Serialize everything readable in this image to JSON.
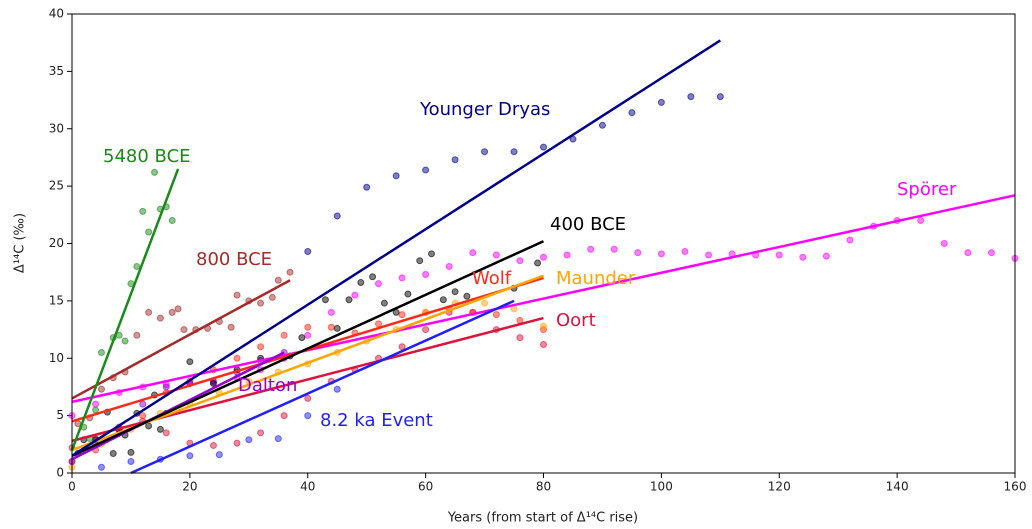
{
  "chart_data": {
    "type": "scatter",
    "x_label": "Years (from start of Δ¹⁴C rise)",
    "y_label": "Δ¹⁴C (‰)",
    "xlim": [
      0,
      160
    ],
    "xticks": [
      0,
      20,
      40,
      60,
      80,
      100,
      120,
      140,
      160
    ],
    "ylim": [
      0,
      40
    ],
    "yticks": [
      0,
      5,
      10,
      15,
      20,
      25,
      30,
      35,
      40
    ],
    "series": [
      {
        "name": "Spörer",
        "color": "#ff00ff",
        "x": [
          0,
          4,
          8,
          12,
          16,
          20,
          24,
          28,
          32,
          36,
          40,
          44,
          48,
          52,
          56,
          60,
          64,
          68,
          72,
          76,
          80,
          84,
          88,
          92,
          96,
          100,
          104,
          108,
          112,
          116,
          120,
          124,
          128,
          132,
          136,
          140,
          144,
          148,
          152,
          156,
          160
        ],
        "values": [
          5,
          6,
          7,
          7.5,
          7.7,
          7.8,
          7.9,
          8.3,
          9,
          10,
          12,
          14,
          15.5,
          16.5,
          17,
          17.3,
          18,
          19.2,
          19,
          18.5,
          18.8,
          19,
          19.5,
          19.5,
          19.2,
          19.1,
          19.3,
          19,
          19.1,
          19,
          19,
          18.8,
          18.9,
          20.3,
          21.5,
          22,
          22,
          20,
          19.2,
          19.2,
          18.7
        ],
        "fit": {
          "x": [
            0,
            160
          ],
          "values": [
            6.2,
            24.2
          ]
        }
      },
      {
        "name": "Oort",
        "color": "#dc143c",
        "x": [
          0,
          4,
          8,
          12,
          16,
          20,
          24,
          28,
          32,
          36,
          40,
          44,
          48,
          52,
          56,
          60,
          64,
          68,
          72,
          76,
          80
        ],
        "values": [
          2.2,
          3,
          3.8,
          4.5,
          3.5,
          2.6,
          2.4,
          2.6,
          3.5,
          5,
          6.5,
          8,
          9,
          10,
          11,
          12.5,
          14,
          14,
          12.5,
          11.8,
          11.2
        ],
        "fit": {
          "x": [
            0,
            80
          ],
          "values": [
            2.8,
            13.5
          ]
        }
      },
      {
        "name": "Wolf",
        "color": "#ff2a1a",
        "x": [
          0,
          4,
          8,
          12,
          16,
          20,
          24,
          28,
          32,
          36,
          40,
          44,
          48,
          52,
          56,
          60,
          64,
          68,
          72,
          76,
          80
        ],
        "values": [
          1,
          2,
          3.5,
          5,
          7,
          8,
          9,
          10,
          11,
          12,
          12.7,
          12.7,
          12.2,
          13,
          13.8,
          14,
          14.3,
          14,
          13.8,
          13.3,
          12.5
        ],
        "fit": {
          "x": [
            0,
            80
          ],
          "values": [
            4.5,
            17
          ]
        }
      },
      {
        "name": "Maunder",
        "color": "#ffa500",
        "x": [
          0,
          5,
          10,
          15,
          20,
          25,
          30,
          35,
          40,
          45,
          50,
          55,
          60,
          65,
          70,
          75,
          80
        ],
        "values": [
          0.5,
          2.5,
          3.8,
          5.2,
          6,
          7,
          8,
          8.8,
          9.5,
          10.5,
          11.5,
          12.5,
          14,
          14.8,
          14.8,
          14.3,
          12.8
        ],
        "fit": {
          "x": [
            0,
            80
          ],
          "values": [
            2,
            17.2
          ]
        }
      },
      {
        "name": "Dalton",
        "color": "#9400d3",
        "x": [
          0,
          4,
          8,
          12,
          16,
          20,
          24,
          28,
          32,
          36
        ],
        "values": [
          1,
          2.5,
          4,
          6,
          7.5,
          7.8,
          8,
          8.8,
          9.8,
          10.5
        ],
        "fit": {
          "x": [
            0,
            36
          ],
          "values": [
            1.2,
            10.5
          ]
        }
      },
      {
        "name": "8.2 ka Event",
        "color": "#1f1fff",
        "x": [
          5,
          10,
          15,
          20,
          25,
          30,
          35,
          40,
          45
        ],
        "values": [
          0.5,
          1,
          1.2,
          1.5,
          1.6,
          2.9,
          3,
          5,
          7.3
        ],
        "fit": {
          "x": [
            10,
            75
          ],
          "values": [
            0,
            15
          ]
        }
      },
      {
        "name": "400 BCE",
        "color": "#000000",
        "x": [
          1,
          2,
          4,
          6,
          7,
          8,
          9,
          10,
          11,
          13,
          14,
          15,
          16,
          20,
          24,
          28,
          32,
          37,
          39,
          43,
          45,
          47,
          49,
          51,
          53,
          55,
          57,
          59,
          61,
          63,
          65,
          67,
          75,
          79
        ],
        "values": [
          1.7,
          2.9,
          2.9,
          5.3,
          1.7,
          3.8,
          3.3,
          1.8,
          5.2,
          4.1,
          6.8,
          3.8,
          5.2,
          9.7,
          7.8,
          9,
          10,
          10.2,
          11.8,
          15.1,
          12.6,
          15.1,
          16.6,
          17.1,
          14.8,
          14,
          15.6,
          18.5,
          19.1,
          15.1,
          15.8,
          15.4,
          16.1,
          18.3
        ],
        "fit": {
          "x": [
            0,
            80
          ],
          "values": [
            1.5,
            20.2
          ]
        }
      },
      {
        "name": "800 BCE",
        "color": "#a52a2a",
        "x": [
          1,
          3,
          5,
          7,
          9,
          11,
          13,
          15,
          17,
          18,
          19,
          21,
          23,
          25,
          27,
          28,
          30,
          32,
          34,
          35,
          37
        ],
        "values": [
          4.3,
          4.8,
          7.3,
          8.3,
          8.8,
          12,
          14,
          13.5,
          14,
          14.3,
          12.5,
          12.5,
          12.6,
          13.2,
          12.7,
          15.5,
          15,
          14.8,
          15.3,
          16.8,
          17.5
        ],
        "fit": {
          "x": [
            0,
            37
          ],
          "values": [
            6.5,
            16.8
          ]
        }
      },
      {
        "name": "Younger Dryas",
        "color": "#00008b",
        "x": [
          40,
          45,
          50,
          55,
          60,
          65,
          70,
          75,
          80,
          85,
          90,
          95,
          100,
          105,
          110
        ],
        "values": [
          19.3,
          22.4,
          24.9,
          25.9,
          26.4,
          27.3,
          28,
          28,
          28.4,
          29.1,
          30.3,
          31.4,
          32.3,
          32.8,
          32.8
        ],
        "fit": {
          "x": [
            0,
            110
          ],
          "values": [
            1.5,
            37.7
          ]
        }
      },
      {
        "name": "5480 BCE",
        "color": "#1a8a1a",
        "x": [
          2,
          3,
          4,
          5,
          7,
          8,
          9,
          10,
          11,
          12,
          13,
          14,
          15,
          16,
          17
        ],
        "values": [
          4,
          3,
          5.5,
          10.5,
          11.8,
          12,
          11.5,
          16.5,
          18,
          22.8,
          21,
          26.2,
          23,
          23.2,
          22
        ],
        "fit": {
          "x": [
            0,
            18
          ],
          "values": [
            2,
            26.5
          ]
        }
      }
    ]
  }
}
